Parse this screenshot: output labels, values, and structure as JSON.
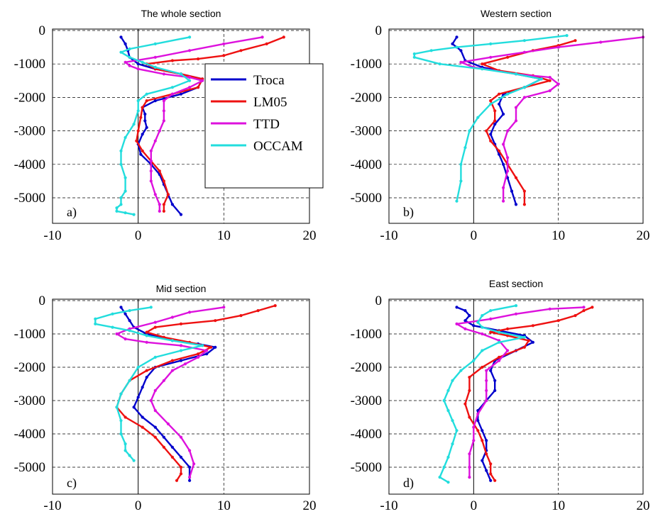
{
  "chart_data": [
    {
      "type": "line",
      "title": "The whole section",
      "panel_label": "a)",
      "xlabel": "",
      "ylabel": "",
      "xlim": [
        -10,
        20
      ],
      "ylim": [
        -5700,
        0
      ],
      "xticks": [
        "-10",
        "0",
        "10",
        "20"
      ],
      "yticks": [
        "0",
        "-1000",
        "-2000",
        "-3000",
        "-4000",
        "-5000"
      ],
      "grid": true,
      "legend": {
        "placement": "top-right",
        "entries": [
          {
            "name": "Troca",
            "color": "#0000cc"
          },
          {
            "name": "LM05",
            "color": "#ee1111"
          },
          {
            "name": "TTD",
            "color": "#dd11dd"
          },
          {
            "name": "OCCAM",
            "color": "#22dddd"
          }
        ]
      },
      "series": [
        {
          "name": "Troca",
          "color": "#0000cc",
          "x": [
            -2,
            -1.5,
            -1.2,
            -1,
            0,
            2,
            5,
            7.5,
            7,
            5,
            2,
            0.5,
            0.8,
            0.8,
            1,
            0.5,
            0,
            0.3,
            1.5,
            2.5,
            3,
            3.5,
            4,
            5
          ],
          "y": [
            -200,
            -400,
            -600,
            -800,
            -1000,
            -1150,
            -1300,
            -1450,
            -1700,
            -1900,
            -2100,
            -2300,
            -2500,
            -2700,
            -2900,
            -3100,
            -3400,
            -3700,
            -4000,
            -4300,
            -4600,
            -4900,
            -5200,
            -5500
          ]
        },
        {
          "name": "LM05",
          "color": "#ee1111",
          "x": [
            17,
            15,
            12,
            10,
            7,
            4,
            1,
            2,
            5,
            7.5,
            7,
            4,
            1,
            0.5,
            0.3,
            0,
            -0.2,
            0.5,
            1.5,
            2.5,
            3,
            3.5,
            3,
            3
          ],
          "y": [
            -200,
            -400,
            -600,
            -750,
            -850,
            -900,
            -1000,
            -1150,
            -1300,
            -1450,
            -1700,
            -1900,
            -2100,
            -2300,
            -2600,
            -3000,
            -3300,
            -3600,
            -3900,
            -4200,
            -4500,
            -4900,
            -5200,
            -5400
          ]
        },
        {
          "name": "TTD",
          "color": "#dd11dd",
          "x": [
            14.5,
            10,
            6,
            2,
            -1.5,
            -1,
            0,
            3,
            6,
            7.5,
            6,
            4,
            3,
            3,
            3,
            2.5,
            2,
            1.5,
            1.5,
            1.5,
            1.5,
            2,
            2.5,
            2.5
          ],
          "y": [
            -200,
            -400,
            -600,
            -800,
            -950,
            -1050,
            -1150,
            -1300,
            -1400,
            -1500,
            -1700,
            -1900,
            -2100,
            -2400,
            -2700,
            -3000,
            -3300,
            -3600,
            -3900,
            -4200,
            -4500,
            -4900,
            -5200,
            -5400
          ]
        },
        {
          "name": "OCCAM",
          "color": "#22dddd",
          "x": [
            6,
            2,
            -1,
            -2,
            -1,
            0.5,
            2,
            5,
            6,
            4,
            1,
            0,
            0,
            -0.5,
            -1.5,
            -2,
            -2,
            -1.5,
            -1.5,
            -2,
            -2,
            -2.5,
            -2.5,
            -1.5,
            -0.5
          ],
          "y": [
            -200,
            -400,
            -550,
            -650,
            -800,
            -950,
            -1100,
            -1300,
            -1500,
            -1700,
            -1900,
            -2100,
            -2400,
            -2800,
            -3200,
            -3600,
            -4000,
            -4400,
            -4800,
            -5000,
            -5200,
            -5300,
            -5400,
            -5450,
            -5500
          ]
        }
      ]
    },
    {
      "type": "line",
      "title": "Western section",
      "panel_label": "b)",
      "xlabel": "",
      "ylabel": "",
      "xlim": [
        -10,
        20
      ],
      "ylim": [
        -5700,
        0
      ],
      "xticks": [
        "-10",
        "0",
        "10",
        "20"
      ],
      "yticks": [
        "0",
        "-1000",
        "-2000",
        "-3000",
        "-4000",
        "-5000"
      ],
      "grid": true,
      "series": [
        {
          "name": "Troca",
          "color": "#0000cc",
          "x": [
            -2,
            -2.5,
            -1.5,
            -1,
            1,
            5,
            8,
            6,
            3.5,
            3,
            3.5,
            2.5,
            2,
            2.5,
            3,
            3.5,
            4,
            4.5,
            5
          ],
          "y": [
            -200,
            -400,
            -600,
            -900,
            -1100,
            -1300,
            -1450,
            -1700,
            -1900,
            -2200,
            -2500,
            -2800,
            -3100,
            -3400,
            -3700,
            -4000,
            -4400,
            -4800,
            -5200
          ]
        },
        {
          "name": "LM05",
          "color": "#ee1111",
          "x": [
            12,
            10,
            7,
            4,
            1,
            3,
            7,
            9,
            6,
            3,
            2,
            2.5,
            2.5,
            1.5,
            2,
            3,
            4,
            5,
            6,
            6
          ],
          "y": [
            -300,
            -450,
            -600,
            -800,
            -1000,
            -1200,
            -1350,
            -1500,
            -1700,
            -1900,
            -2100,
            -2400,
            -2700,
            -3000,
            -3300,
            -3600,
            -4000,
            -4400,
            -4800,
            -5200
          ]
        },
        {
          "name": "TTD",
          "color": "#dd11dd",
          "x": [
            20,
            15,
            10,
            6,
            2,
            -1.5,
            0,
            5,
            9,
            10,
            9,
            6,
            5,
            5,
            4,
            3.5,
            4,
            4,
            3.5,
            3.5
          ],
          "y": [
            -200,
            -350,
            -500,
            -650,
            -800,
            -950,
            -1100,
            -1300,
            -1400,
            -1600,
            -1800,
            -2000,
            -2300,
            -2700,
            -3000,
            -3400,
            -3800,
            -4200,
            -4700,
            -5100
          ]
        },
        {
          "name": "OCCAM",
          "color": "#22dddd",
          "x": [
            11,
            6,
            2,
            -2,
            -5,
            -7,
            -7,
            -4,
            1,
            5,
            8,
            6,
            4,
            2,
            0.5,
            -0.5,
            -1,
            -1.5,
            -1.5,
            -2
          ],
          "y": [
            -150,
            -300,
            -400,
            -500,
            -600,
            -700,
            -800,
            -1000,
            -1150,
            -1300,
            -1450,
            -1700,
            -1900,
            -2200,
            -2600,
            -3000,
            -3500,
            -4000,
            -4500,
            -5100
          ]
        }
      ]
    },
    {
      "type": "line",
      "title": "Mid section",
      "panel_label": "c)",
      "xlabel": "",
      "ylabel": "",
      "xlim": [
        -10,
        20
      ],
      "ylim": [
        -5700,
        0
      ],
      "xticks": [
        "-10",
        "0",
        "10",
        "20"
      ],
      "yticks": [
        "0",
        "-1000",
        "-2000",
        "-3000",
        "-4000",
        "-5000"
      ],
      "grid": true,
      "series": [
        {
          "name": "Troca",
          "color": "#0000cc",
          "x": [
            -2,
            -1.5,
            -1,
            -0.5,
            1,
            4,
            7,
            9,
            8,
            5,
            2,
            1,
            0.5,
            0,
            -0.5,
            0.5,
            2,
            3,
            4,
            5,
            6,
            6
          ],
          "y": [
            -200,
            -400,
            -600,
            -800,
            -1000,
            -1200,
            -1300,
            -1400,
            -1600,
            -1800,
            -2000,
            -2300,
            -2600,
            -2900,
            -3200,
            -3500,
            -3800,
            -4100,
            -4400,
            -4700,
            -5000,
            -5400
          ]
        },
        {
          "name": "LM05",
          "color": "#ee1111",
          "x": [
            16,
            14,
            12,
            9,
            5,
            2,
            1,
            3,
            6,
            8.5,
            7,
            4,
            1,
            -1,
            -2,
            -2.5,
            -1.5,
            0.5,
            2,
            3,
            4,
            5,
            5,
            4.5
          ],
          "y": [
            -150,
            -300,
            -450,
            -600,
            -700,
            -800,
            -950,
            -1100,
            -1250,
            -1400,
            -1600,
            -1800,
            -2100,
            -2400,
            -2800,
            -3200,
            -3500,
            -3800,
            -4100,
            -4400,
            -4700,
            -5000,
            -5200,
            -5400
          ]
        },
        {
          "name": "TTD",
          "color": "#dd11dd",
          "x": [
            10,
            6,
            4,
            2,
            -1,
            -2.5,
            -1.5,
            1,
            5,
            8,
            7,
            5.5,
            4,
            3,
            2,
            1.5,
            2,
            3.5,
            5,
            6,
            6.5,
            6
          ],
          "y": [
            -200,
            -350,
            -500,
            -650,
            -850,
            -1000,
            -1150,
            -1250,
            -1350,
            -1500,
            -1700,
            -1900,
            -2100,
            -2400,
            -2700,
            -3000,
            -3300,
            -3700,
            -4100,
            -4500,
            -4900,
            -5300
          ]
        },
        {
          "name": "OCCAM",
          "color": "#22dddd",
          "x": [
            1.5,
            -1,
            -3,
            -5,
            -5,
            -3,
            -1,
            1,
            4,
            7.5,
            5,
            2,
            0,
            -1,
            -2,
            -2.5,
            -2,
            -2,
            -1.5,
            -1.5,
            -1,
            -0.5
          ],
          "y": [
            -200,
            -300,
            -400,
            -550,
            -700,
            -800,
            -900,
            -1050,
            -1200,
            -1350,
            -1500,
            -1700,
            -2000,
            -2400,
            -2800,
            -3200,
            -3600,
            -4000,
            -4300,
            -4500,
            -4650,
            -4800
          ]
        }
      ]
    },
    {
      "type": "line",
      "title": "East section",
      "panel_label": "d)",
      "xlabel": "",
      "ylabel": "",
      "xlim": [
        -10,
        20
      ],
      "ylim": [
        -5700,
        0
      ],
      "xticks": [
        "-10",
        "0",
        "10",
        "20"
      ],
      "yticks": [
        "0",
        "-1000",
        "-2000",
        "-3000",
        "-4000",
        "-5000"
      ],
      "grid": true,
      "series": [
        {
          "name": "Troca",
          "color": "#0000cc",
          "x": [
            -2,
            -1,
            -0.5,
            -1,
            0,
            3,
            6,
            7,
            5,
            2.5,
            2,
            2.5,
            2.5,
            1.5,
            0.5,
            0.5,
            1,
            1.5,
            1.5,
            1,
            1.5,
            2
          ],
          "y": [
            -200,
            -300,
            -450,
            -600,
            -750,
            -900,
            -1050,
            -1250,
            -1500,
            -1800,
            -2100,
            -2400,
            -2700,
            -3000,
            -3300,
            -3600,
            -3900,
            -4200,
            -4500,
            -4800,
            -5100,
            -5400
          ]
        },
        {
          "name": "LM05",
          "color": "#ee1111",
          "x": [
            14,
            13,
            12,
            10,
            7,
            4,
            2,
            4,
            6.5,
            6,
            3,
            1,
            -0.5,
            -0.5,
            -1,
            -0.5,
            0.5,
            1,
            1.5,
            2,
            2,
            2.5
          ],
          "y": [
            -200,
            -300,
            -450,
            -600,
            -750,
            -850,
            -950,
            -1050,
            -1200,
            -1400,
            -1700,
            -2000,
            -2300,
            -2700,
            -3100,
            -3500,
            -3900,
            -4200,
            -4600,
            -4900,
            -5200,
            -5400
          ]
        },
        {
          "name": "TTD",
          "color": "#dd11dd",
          "x": [
            13,
            9,
            5,
            2,
            -2,
            -1,
            1,
            3,
            4,
            3,
            1.5,
            1.5,
            1.5,
            1.5,
            0.5,
            0,
            0,
            -0.5,
            -0.5,
            -0.5
          ],
          "y": [
            -200,
            -250,
            -400,
            -550,
            -700,
            -850,
            -1000,
            -1200,
            -1500,
            -1800,
            -2100,
            -2400,
            -2700,
            -3000,
            -3400,
            -3800,
            -4200,
            -4600,
            -5000,
            -5300
          ]
        },
        {
          "name": "OCCAM",
          "color": "#22dddd",
          "x": [
            5,
            2,
            1,
            0.5,
            1,
            3,
            6,
            3,
            1,
            0,
            -1.5,
            -2.5,
            -3,
            -3.5,
            -3,
            -2.5,
            -2,
            -2.5,
            -3,
            -3.5,
            -4,
            -3
          ],
          "y": [
            -150,
            -300,
            -450,
            -650,
            -800,
            -950,
            -1100,
            -1250,
            -1500,
            -1800,
            -2100,
            -2400,
            -2700,
            -3000,
            -3300,
            -3600,
            -3900,
            -4300,
            -4700,
            -5000,
            -5300,
            -5450
          ]
        }
      ]
    }
  ]
}
